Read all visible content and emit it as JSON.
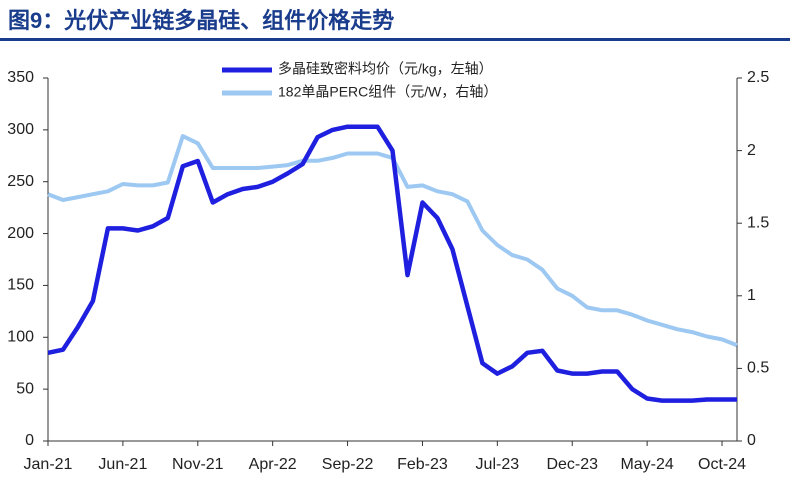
{
  "chart_data": {
    "type": "line",
    "title": "图9：光伏产业链多晶硅、组件价格走势",
    "categories": [
      "Jan-21",
      null,
      null,
      null,
      null,
      "Jun-21",
      null,
      null,
      null,
      null,
      "Nov-21",
      null,
      null,
      null,
      null,
      "Apr-22",
      null,
      null,
      null,
      null,
      "Sep-22",
      null,
      null,
      null,
      null,
      "Feb-23",
      null,
      null,
      null,
      null,
      "Jul-23",
      null,
      null,
      null,
      null,
      "Dec-23",
      null,
      null,
      null,
      null,
      "May-24",
      null,
      null,
      null,
      null,
      "Oct-24",
      null
    ],
    "series": [
      {
        "name": "多晶硅致密料均价（元/kg，左轴）",
        "color": "#1f1fe0",
        "axis": "y",
        "values": [
          85,
          88,
          110,
          135,
          205,
          205,
          203,
          207,
          215,
          265,
          270,
          230,
          238,
          243,
          245,
          250,
          258,
          267,
          293,
          300,
          303,
          303,
          303,
          280,
          160,
          230,
          215,
          185,
          130,
          75,
          65,
          72,
          85,
          87,
          68,
          65,
          65,
          67,
          67,
          50,
          41,
          39,
          39,
          39,
          40,
          40,
          40
        ]
      },
      {
        "name": "182单晶PERC组件（元/W，右轴）",
        "color": "#9dc8f2",
        "axis": "y2",
        "values": [
          1.7,
          1.66,
          1.68,
          1.7,
          1.72,
          1.77,
          1.76,
          1.76,
          1.78,
          2.1,
          2.05,
          1.88,
          1.88,
          1.88,
          1.88,
          1.89,
          1.9,
          1.93,
          1.93,
          1.95,
          1.98,
          1.98,
          1.98,
          1.95,
          1.75,
          1.76,
          1.72,
          1.7,
          1.65,
          1.45,
          1.35,
          1.28,
          1.25,
          1.18,
          1.05,
          1.0,
          0.92,
          0.9,
          0.9,
          0.87,
          0.83,
          0.8,
          0.77,
          0.75,
          0.72,
          0.7,
          0.66
        ]
      }
    ],
    "ylim": [
      0,
      350
    ],
    "yticks": [
      0,
      50,
      100,
      150,
      200,
      250,
      300,
      350
    ],
    "y2lim": [
      0,
      2.5
    ],
    "y2ticks": [
      0,
      0.5,
      1,
      1.5,
      2,
      2.5
    ]
  }
}
